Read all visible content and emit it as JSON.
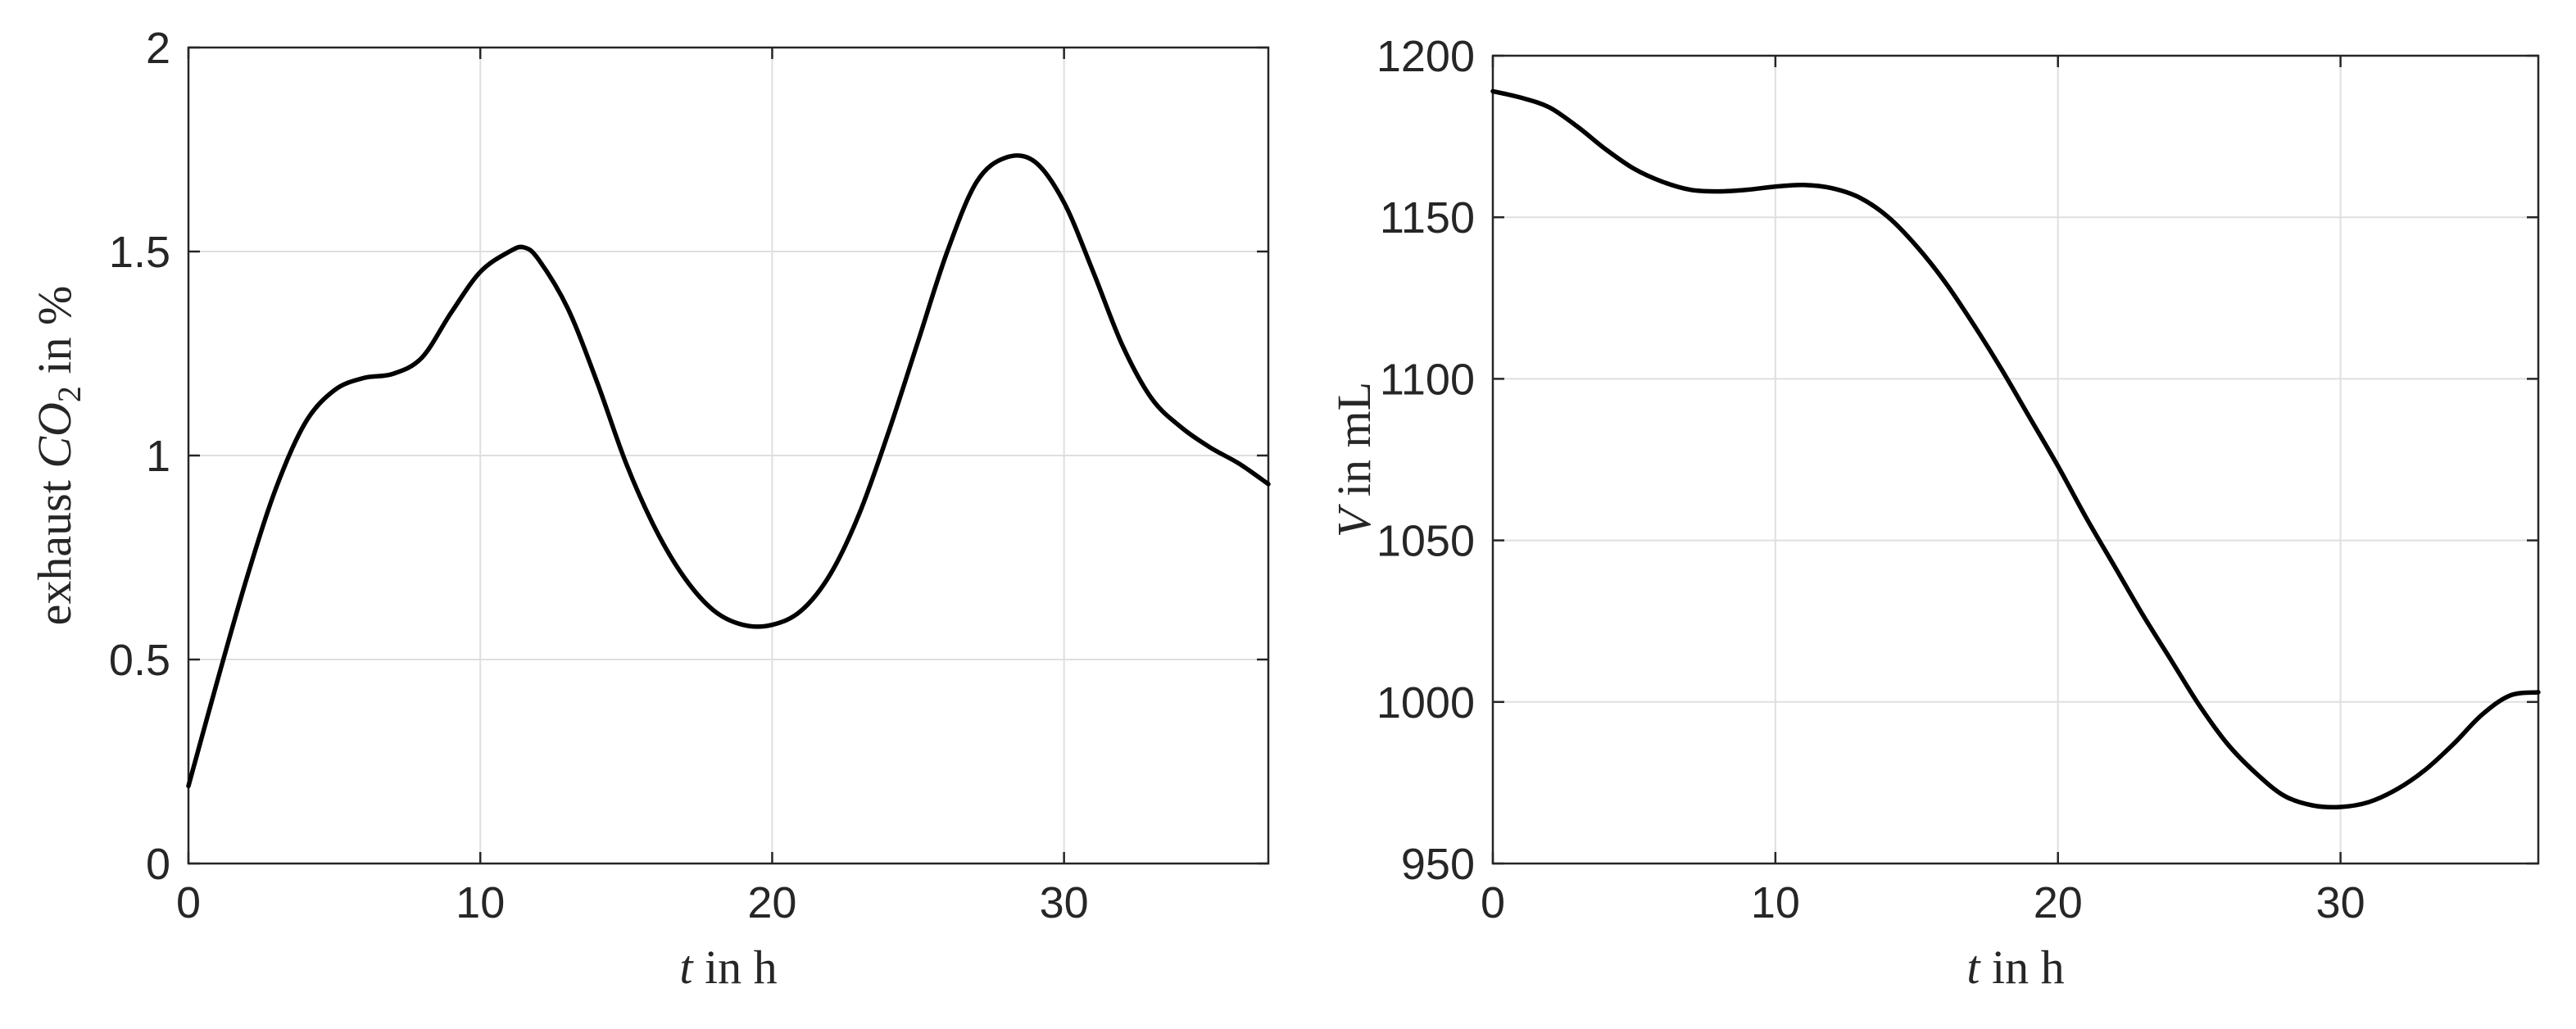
{
  "chart_data": [
    {
      "type": "line",
      "title": "",
      "xlabel": "t in h",
      "ylabel": "exhaust CO2 in %",
      "xlabel_parts": {
        "var": "t",
        "rest": " in h"
      },
      "ylabel_parts": {
        "pre": "exhaust ",
        "var": "CO",
        "sub": "2",
        "rest": " in %"
      },
      "xlim": [
        0,
        37
      ],
      "ylim": [
        0,
        2
      ],
      "xticks": [
        0,
        10,
        20,
        30
      ],
      "yticks": [
        0,
        0.5,
        1,
        1.5,
        2
      ],
      "xtick_labels": [
        "0",
        "10",
        "20",
        "30"
      ],
      "ytick_labels": [
        "0",
        "0.5",
        "1",
        "1.5",
        "2"
      ],
      "grid": true,
      "series": [
        {
          "color": "#000000",
          "x": [
            0,
            1,
            2,
            3,
            4,
            5,
            6,
            7,
            8,
            9,
            10,
            11,
            11.5,
            12,
            13,
            14,
            15,
            16,
            17,
            18,
            19,
            20,
            21,
            22,
            23,
            24,
            25,
            26,
            27,
            28,
            29,
            30,
            31,
            32,
            33,
            34,
            35,
            36,
            37
          ],
          "y": [
            0.19,
            0.45,
            0.7,
            0.92,
            1.08,
            1.16,
            1.19,
            1.2,
            1.24,
            1.35,
            1.45,
            1.5,
            1.51,
            1.48,
            1.36,
            1.18,
            0.98,
            0.82,
            0.7,
            0.62,
            0.585,
            0.585,
            0.62,
            0.71,
            0.86,
            1.06,
            1.28,
            1.5,
            1.67,
            1.73,
            1.72,
            1.62,
            1.45,
            1.27,
            1.14,
            1.07,
            1.02,
            0.98,
            0.93
          ]
        }
      ]
    },
    {
      "type": "line",
      "title": "",
      "xlabel": "t in h",
      "ylabel": "V in mL",
      "xlabel_parts": {
        "var": "t",
        "rest": " in h"
      },
      "ylabel_parts": {
        "pre": "",
        "var": "V",
        "sub": "",
        "rest": " in mL"
      },
      "xlim": [
        0,
        37
      ],
      "ylim": [
        950,
        1200
      ],
      "xticks": [
        0,
        10,
        20,
        30
      ],
      "yticks": [
        950,
        1000,
        1050,
        1100,
        1150,
        1200
      ],
      "xtick_labels": [
        "0",
        "10",
        "20",
        "30"
      ],
      "ytick_labels": [
        "950",
        "1000",
        "1050",
        "1100",
        "1150",
        "1200"
      ],
      "grid": true,
      "series": [
        {
          "color": "#000000",
          "x": [
            0,
            1,
            2,
            3,
            4,
            5,
            6,
            7,
            8,
            9,
            10,
            11,
            12,
            13,
            14,
            15,
            16,
            17,
            18,
            19,
            20,
            21,
            22,
            23,
            24,
            25,
            26,
            27,
            28,
            29,
            30,
            31,
            32,
            33,
            34,
            35,
            36,
            37
          ],
          "y": [
            1189,
            1187,
            1184,
            1178,
            1171,
            1165,
            1161,
            1158.5,
            1158,
            1158.5,
            1159.5,
            1160,
            1159,
            1156,
            1150,
            1141,
            1130,
            1117,
            1103,
            1088,
            1073,
            1057,
            1042,
            1027,
            1013,
            999,
            987,
            978,
            971,
            968,
            967.5,
            969,
            973,
            979,
            987,
            996,
            1002,
            1003
          ]
        }
      ]
    }
  ]
}
